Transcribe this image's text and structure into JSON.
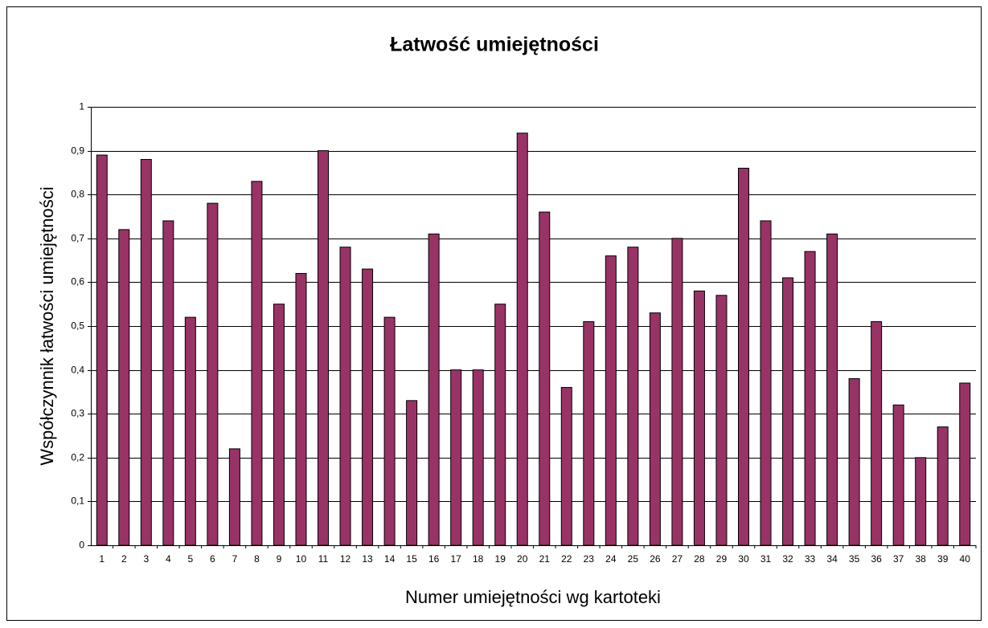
{
  "chart_data": {
    "type": "bar",
    "title": "Łatwość umiejętności",
    "x_label": "Numer umiejętności wg kartoteki",
    "y_label": "Współczynnik łatwości umiejętności",
    "categories": [
      "1",
      "2",
      "3",
      "4",
      "5",
      "6",
      "7",
      "8",
      "9",
      "10",
      "11",
      "12",
      "13",
      "14",
      "15",
      "16",
      "17",
      "18",
      "19",
      "20",
      "21",
      "22",
      "23",
      "24",
      "25",
      "26",
      "27",
      "28",
      "29",
      "30",
      "31",
      "32",
      "33",
      "34",
      "35",
      "36",
      "37",
      "38",
      "39",
      "40"
    ],
    "values": [
      0.89,
      0.72,
      0.88,
      0.74,
      0.52,
      0.78,
      0.22,
      0.83,
      0.55,
      0.62,
      0.9,
      0.68,
      0.63,
      0.52,
      0.33,
      0.71,
      0.4,
      0.4,
      0.55,
      0.94,
      0.76,
      0.36,
      0.51,
      0.66,
      0.68,
      0.53,
      0.7,
      0.58,
      0.57,
      0.86,
      0.74,
      0.61,
      0.67,
      0.71,
      0.38,
      0.51,
      0.32,
      0.2,
      0.27,
      0.37
    ],
    "color": "#993366",
    "ylim": [
      0,
      1
    ],
    "yticks": [
      0,
      {
        "value": 0.1,
        "label": "0,1"
      },
      {
        "value": 0.2,
        "label": "0,2"
      },
      {
        "value": 0.3,
        "label": "0,3"
      },
      {
        "value": 0.4,
        "label": "0,4"
      },
      {
        "value": 0.5,
        "label": "0,5"
      },
      {
        "value": 0.6,
        "label": "0,6"
      },
      {
        "value": 0.7,
        "label": "0,7"
      },
      {
        "value": 0.8,
        "label": "0,8"
      },
      {
        "value": 0.9,
        "label": "0,9"
      },
      1
    ],
    "grid": true
  }
}
